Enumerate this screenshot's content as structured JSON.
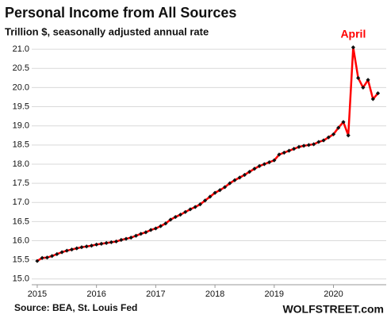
{
  "chart_data": {
    "type": "line",
    "title": "Personal Income from All Sources",
    "subtitle": "Trillion $, seasonally adjusted annual rate",
    "annotation": "April",
    "source": "Source: BEA, St. Louis Fed",
    "credit": "WOLFSTREET.com",
    "x": [
      2015,
      2015.083,
      2015.167,
      2015.25,
      2015.333,
      2015.417,
      2015.5,
      2015.583,
      2015.667,
      2015.75,
      2015.833,
      2015.917,
      2016,
      2016.083,
      2016.167,
      2016.25,
      2016.333,
      2016.417,
      2016.5,
      2016.583,
      2016.667,
      2016.75,
      2016.833,
      2016.917,
      2017,
      2017.083,
      2017.167,
      2017.25,
      2017.333,
      2017.417,
      2017.5,
      2017.583,
      2017.667,
      2017.75,
      2017.833,
      2017.917,
      2018,
      2018.083,
      2018.167,
      2018.25,
      2018.333,
      2018.417,
      2018.5,
      2018.583,
      2018.667,
      2018.75,
      2018.833,
      2018.917,
      2019,
      2019.083,
      2019.167,
      2019.25,
      2019.333,
      2019.417,
      2019.5,
      2019.583,
      2019.667,
      2019.75,
      2019.833,
      2019.917,
      2020,
      2020.083,
      2020.167,
      2020.25,
      2020.333,
      2020.417,
      2020.5,
      2020.583,
      2020.667,
      2020.75
    ],
    "series": [
      {
        "name": "Personal Income",
        "color": "#ff0000",
        "marker_color": "#111111",
        "values": [
          15.47,
          15.55,
          15.56,
          15.6,
          15.65,
          15.7,
          15.74,
          15.77,
          15.8,
          15.83,
          15.85,
          15.87,
          15.9,
          15.92,
          15.94,
          15.96,
          15.98,
          16.02,
          16.05,
          16.08,
          16.13,
          16.18,
          16.22,
          16.28,
          16.32,
          16.38,
          16.45,
          16.55,
          16.62,
          16.68,
          16.75,
          16.82,
          16.88,
          16.95,
          17.05,
          17.15,
          17.25,
          17.32,
          17.4,
          17.5,
          17.58,
          17.65,
          17.72,
          17.8,
          17.88,
          17.95,
          18.0,
          18.05,
          18.1,
          18.25,
          18.3,
          18.35,
          18.4,
          18.45,
          18.48,
          18.5,
          18.52,
          18.58,
          18.62,
          18.7,
          18.78,
          18.95,
          19.1,
          18.75,
          21.05,
          20.25,
          20.0,
          20.2,
          19.7,
          19.85
        ]
      }
    ],
    "xlim": [
      2014.907,
      2020.89
    ],
    "xticks": [
      2015,
      2016,
      2017,
      2018,
      2019,
      2020
    ],
    "ylim": [
      14.85,
      21.2
    ],
    "yticks": [
      {
        "value": 15,
        "label": "15.0"
      },
      {
        "value": 15.5,
        "label": "15.5"
      },
      {
        "value": 16,
        "label": "16.0"
      },
      {
        "value": 16.5,
        "label": "16.5"
      },
      {
        "value": 17,
        "label": "17.0"
      },
      {
        "value": 17.5,
        "label": "17.5"
      },
      {
        "value": 18,
        "label": "18.0"
      },
      {
        "value": 18.5,
        "label": "18.5"
      },
      {
        "value": 19,
        "label": "19.0"
      },
      {
        "value": 19.5,
        "label": "19.5"
      },
      {
        "value": 20,
        "label": "20.0"
      },
      {
        "value": 20.5,
        "label": "20.5"
      },
      {
        "value": 21,
        "label": "21.0"
      }
    ],
    "grid": true
  }
}
